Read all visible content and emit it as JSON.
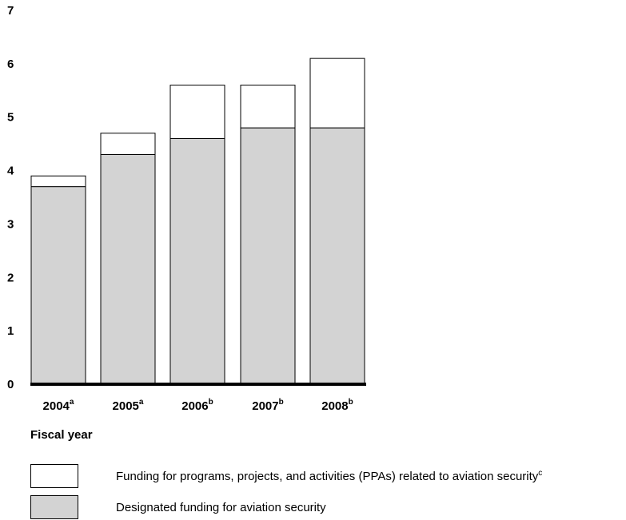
{
  "chart_data": {
    "type": "bar",
    "stacked": true,
    "categories": [
      "2004",
      "2005",
      "2006",
      "2007",
      "2008"
    ],
    "category_superscripts": [
      "a",
      "a",
      "b",
      "b",
      "b"
    ],
    "series": [
      {
        "name": "Designated funding for aviation security",
        "values": [
          3.7,
          4.3,
          4.6,
          4.8,
          4.8
        ],
        "color": "#d3d3d3"
      },
      {
        "name": "Funding for programs, projects, and activities (PPAs) related to aviation security",
        "name_superscript": "c",
        "values": [
          0.2,
          0.4,
          1.0,
          0.8,
          1.3
        ],
        "color": "#ffffff"
      }
    ],
    "y_ticks": [
      "0",
      "1",
      "2",
      "3",
      "4",
      "5",
      "6",
      "7"
    ],
    "ylim": [
      0,
      7
    ],
    "xlabel": "Fiscal year",
    "ylabel": "",
    "title": "",
    "grid": false,
    "legend_position": "bottom"
  }
}
